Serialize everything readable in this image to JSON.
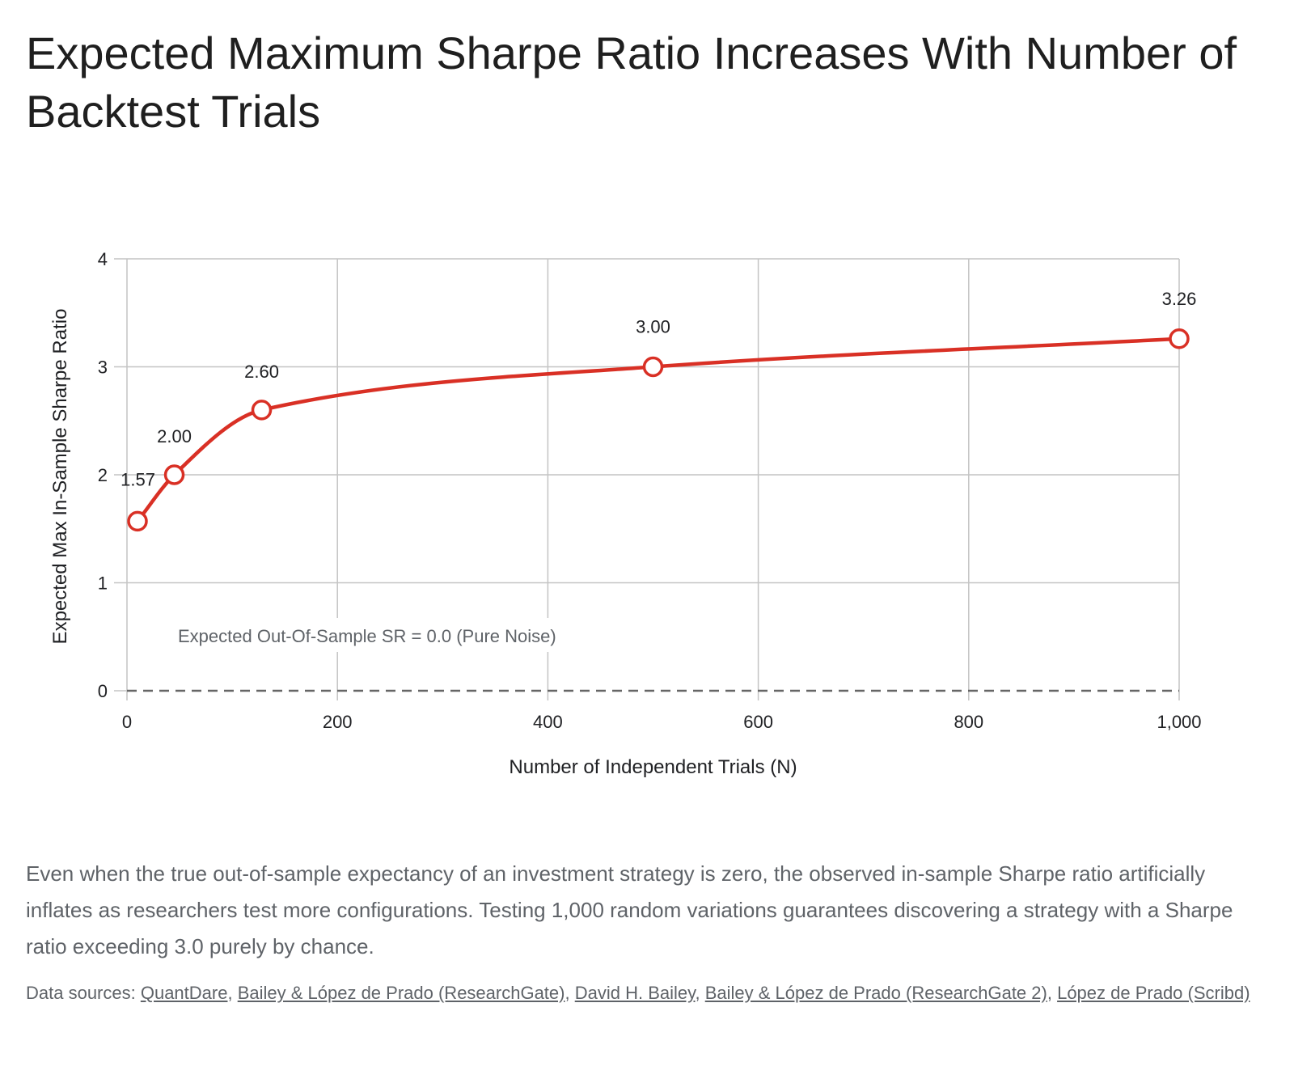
{
  "title": "Expected Maximum Sharpe Ratio Increases With Number of Backtest Trials",
  "description": "Even when the true out-of-sample expectancy of an investment strategy is zero, the observed in-sample Sharpe ratio artificially inflates as researchers test more configurations. Testing 1,000 random variations guarantees discovering a strategy with a Sharpe ratio exceeding 3.0 purely by chance.",
  "sources": {
    "prefix": "Data sources: ",
    "links": [
      "QuantDare",
      "Bailey & López de Prado (ResearchGate)",
      "David H. Bailey",
      "Bailey & López de Prado (ResearchGate 2)",
      "López de Prado (Scribd)"
    ],
    "separator": ", "
  },
  "colors": {
    "line": "#d93025",
    "grid": "#c4c4c4",
    "baseline": "#666666"
  },
  "chart_data": {
    "type": "line",
    "xlabel": "Number of Independent Trials (N)",
    "ylabel": "Expected Max In-Sample Sharpe Ratio",
    "xlim": [
      0,
      1000
    ],
    "ylim": [
      0,
      4
    ],
    "xticks": [
      0,
      200,
      400,
      600,
      800,
      1000
    ],
    "xtick_labels": [
      "0",
      "200",
      "400",
      "600",
      "800",
      "1,000"
    ],
    "yticks": [
      0,
      1,
      2,
      3,
      4
    ],
    "ytick_labels": [
      "0",
      "1",
      "2",
      "3",
      "4"
    ],
    "grid": true,
    "legend": "none",
    "series": [
      {
        "x": [
          10,
          45,
          128,
          500,
          1000
        ],
        "y": [
          1.57,
          2.0,
          2.6,
          3.0,
          3.26
        ],
        "labels": [
          "1.57",
          "2.00",
          "2.60",
          "3.00",
          "3.26"
        ],
        "marker": "open-circle",
        "smooth": true
      }
    ],
    "annotations": [
      {
        "text": "Expected Out-Of-Sample SR = 0.0 (Pure Noise)",
        "y": 0,
        "style": "dashed"
      }
    ]
  }
}
